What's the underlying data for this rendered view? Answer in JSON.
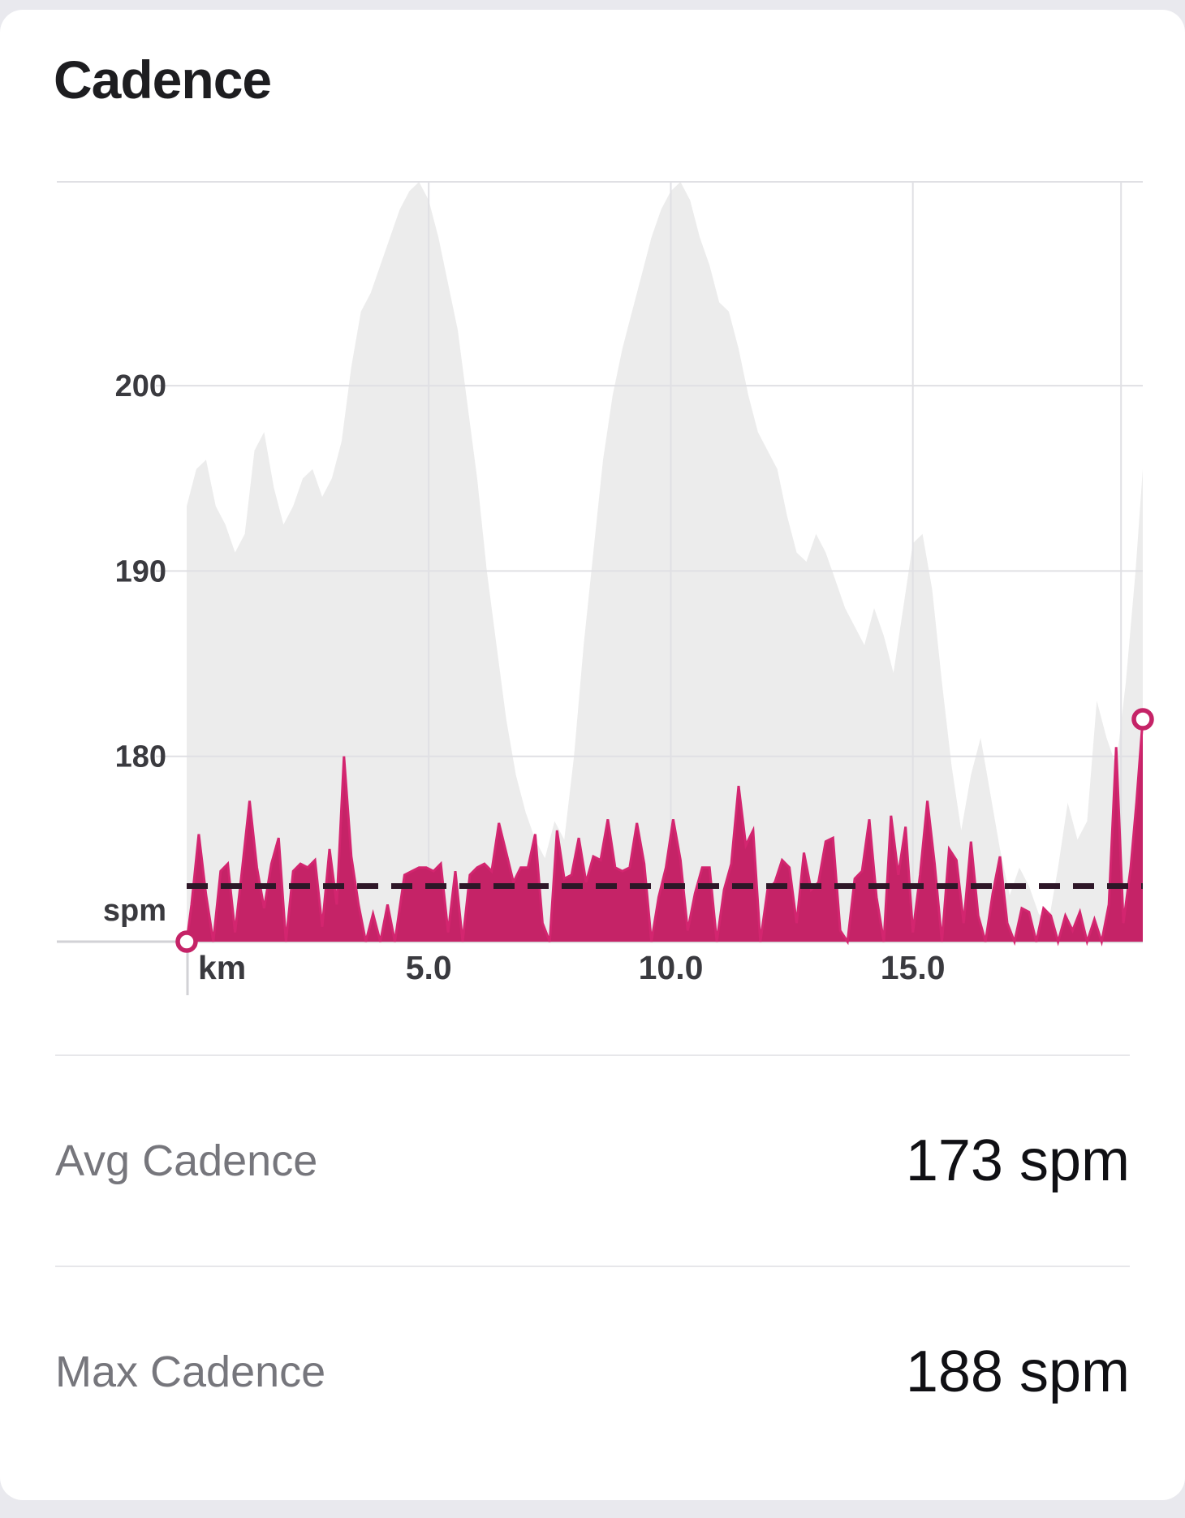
{
  "card": {
    "title": "Cadence"
  },
  "stats": [
    {
      "label": "Avg Cadence",
      "value": "173 spm"
    },
    {
      "label": "Max Cadence",
      "value": "188 spm"
    }
  ],
  "chart_data": {
    "type": "area",
    "title": "Cadence",
    "x_unit_label": "km",
    "y_unit_label": "spm",
    "xlim": [
      0,
      19.75
    ],
    "ylim": [
      170,
      211
    ],
    "x_ticks": [
      5,
      10,
      15
    ],
    "x_tick_labels": [
      "5.0",
      "10.0",
      "15.0"
    ],
    "y_ticks": [
      180,
      190,
      200
    ],
    "y_tick_labels": [
      "180",
      "190",
      "200"
    ],
    "extra_vline_x": 19.3,
    "avg_cadence_line": 173,
    "max_cadence": 188,
    "grid": true,
    "legend": "none",
    "colors": {
      "cadence_fill": "#c52367",
      "cadence_edge": "#d3256f",
      "background_fill": "#ececec",
      "avg_line": "#2e1728",
      "grid_line": "#e0e0e4",
      "axis_line": "#d2d2d6",
      "tick_text": "#3a3a3f",
      "marker_fill": "#ffffff"
    },
    "markers": {
      "start": [
        0,
        170
      ],
      "end": [
        19.75,
        182
      ]
    },
    "series": [
      {
        "name": "background-profile",
        "role": "elevation-silhouette",
        "points": [
          [
            0,
            193.5
          ],
          [
            0.2,
            195.5
          ],
          [
            0.4,
            196
          ],
          [
            0.6,
            193.5
          ],
          [
            0.8,
            192.5
          ],
          [
            1,
            191
          ],
          [
            1.2,
            192
          ],
          [
            1.4,
            196.5
          ],
          [
            1.6,
            197.5
          ],
          [
            1.8,
            194.5
          ],
          [
            2,
            192.5
          ],
          [
            2.2,
            193.5
          ],
          [
            2.4,
            195
          ],
          [
            2.6,
            195.5
          ],
          [
            2.8,
            194
          ],
          [
            3,
            195
          ],
          [
            3.2,
            197
          ],
          [
            3.4,
            201
          ],
          [
            3.6,
            204
          ],
          [
            3.8,
            205
          ],
          [
            4,
            206.5
          ],
          [
            4.2,
            208
          ],
          [
            4.4,
            209.5
          ],
          [
            4.6,
            210.5
          ],
          [
            4.8,
            211
          ],
          [
            5,
            210
          ],
          [
            5.2,
            208
          ],
          [
            5.4,
            205.5
          ],
          [
            5.6,
            203
          ],
          [
            5.8,
            199
          ],
          [
            6,
            195
          ],
          [
            6.2,
            190
          ],
          [
            6.4,
            186
          ],
          [
            6.6,
            182
          ],
          [
            6.8,
            179
          ],
          [
            7,
            177
          ],
          [
            7.2,
            175.5
          ],
          [
            7.4,
            174.5
          ],
          [
            7.6,
            176.5
          ],
          [
            7.8,
            175.5
          ],
          [
            8,
            180
          ],
          [
            8.2,
            186
          ],
          [
            8.4,
            191
          ],
          [
            8.6,
            196
          ],
          [
            8.8,
            199.5
          ],
          [
            9,
            202
          ],
          [
            9.2,
            204
          ],
          [
            9.4,
            206
          ],
          [
            9.6,
            208
          ],
          [
            9.8,
            209.5
          ],
          [
            10,
            210.5
          ],
          [
            10.2,
            211
          ],
          [
            10.4,
            210
          ],
          [
            10.6,
            208
          ],
          [
            10.8,
            206.5
          ],
          [
            11,
            204.5
          ],
          [
            11.2,
            204
          ],
          [
            11.4,
            202
          ],
          [
            11.6,
            199.5
          ],
          [
            11.8,
            197.5
          ],
          [
            12,
            196.5
          ],
          [
            12.2,
            195.5
          ],
          [
            12.4,
            193
          ],
          [
            12.6,
            191
          ],
          [
            12.8,
            190.5
          ],
          [
            13,
            192
          ],
          [
            13.2,
            191
          ],
          [
            13.4,
            189.5
          ],
          [
            13.6,
            188
          ],
          [
            13.8,
            187
          ],
          [
            14,
            186
          ],
          [
            14.2,
            188
          ],
          [
            14.4,
            186.5
          ],
          [
            14.6,
            184.5
          ],
          [
            14.8,
            188
          ],
          [
            15,
            191.5
          ],
          [
            15.2,
            192
          ],
          [
            15.4,
            189
          ],
          [
            15.6,
            184
          ],
          [
            15.8,
            179.5
          ],
          [
            16,
            176
          ],
          [
            16.2,
            179
          ],
          [
            16.4,
            181
          ],
          [
            16.6,
            178
          ],
          [
            16.8,
            175
          ],
          [
            17,
            172.5
          ],
          [
            17.2,
            174
          ],
          [
            17.4,
            173
          ],
          [
            17.6,
            171.5
          ],
          [
            17.8,
            171
          ],
          [
            18,
            174
          ],
          [
            18.2,
            177.5
          ],
          [
            18.4,
            175.5
          ],
          [
            18.6,
            176.5
          ],
          [
            18.8,
            183
          ],
          [
            19,
            181
          ],
          [
            19.2,
            179.5
          ],
          [
            19.4,
            184
          ],
          [
            19.6,
            190
          ],
          [
            19.75,
            195.5
          ]
        ]
      },
      {
        "name": "cadence",
        "role": "cadence-spm",
        "points": [
          [
            0,
            170
          ],
          [
            0.1,
            172
          ],
          [
            0.25,
            175.8
          ],
          [
            0.4,
            172.5
          ],
          [
            0.55,
            170
          ],
          [
            0.7,
            173.8
          ],
          [
            0.85,
            174.2
          ],
          [
            1,
            170.5
          ],
          [
            1.15,
            174
          ],
          [
            1.3,
            177.6
          ],
          [
            1.45,
            174
          ],
          [
            1.6,
            171.8
          ],
          [
            1.75,
            174.2
          ],
          [
            1.9,
            175.6
          ],
          [
            2.05,
            170
          ],
          [
            2.2,
            173.8
          ],
          [
            2.35,
            174.2
          ],
          [
            2.5,
            174
          ],
          [
            2.65,
            174.4
          ],
          [
            2.8,
            170.8
          ],
          [
            2.95,
            175
          ],
          [
            3.1,
            172
          ],
          [
            3.25,
            180
          ],
          [
            3.4,
            174.6
          ],
          [
            3.55,
            172
          ],
          [
            3.7,
            170
          ],
          [
            3.85,
            171.5
          ],
          [
            4,
            170
          ],
          [
            4.15,
            172
          ],
          [
            4.3,
            170
          ],
          [
            4.5,
            173.6
          ],
          [
            4.65,
            173.8
          ],
          [
            4.8,
            174
          ],
          [
            4.95,
            174
          ],
          [
            5.1,
            173.8
          ],
          [
            5.25,
            174.2
          ],
          [
            5.4,
            170.5
          ],
          [
            5.55,
            173.8
          ],
          [
            5.7,
            170
          ],
          [
            5.85,
            173.6
          ],
          [
            6,
            174
          ],
          [
            6.15,
            174.2
          ],
          [
            6.3,
            173.8
          ],
          [
            6.45,
            176.4
          ],
          [
            6.6,
            174.8
          ],
          [
            6.75,
            173.2
          ],
          [
            6.9,
            174
          ],
          [
            7.05,
            174
          ],
          [
            7.2,
            175.8
          ],
          [
            7.35,
            171
          ],
          [
            7.5,
            170
          ],
          [
            7.65,
            176
          ],
          [
            7.8,
            173.4
          ],
          [
            7.95,
            173.6
          ],
          [
            8.1,
            175.6
          ],
          [
            8.25,
            173.2
          ],
          [
            8.4,
            174.6
          ],
          [
            8.55,
            174.4
          ],
          [
            8.7,
            176.6
          ],
          [
            8.85,
            174
          ],
          [
            9,
            173.8
          ],
          [
            9.15,
            174
          ],
          [
            9.3,
            176.4
          ],
          [
            9.45,
            174.2
          ],
          [
            9.6,
            170
          ],
          [
            9.75,
            172.4
          ],
          [
            9.9,
            174
          ],
          [
            10.05,
            176.6
          ],
          [
            10.2,
            174.4
          ],
          [
            10.35,
            170.6
          ],
          [
            10.5,
            172.6
          ],
          [
            10.65,
            174
          ],
          [
            10.8,
            174
          ],
          [
            10.95,
            170
          ],
          [
            11.1,
            172.8
          ],
          [
            11.25,
            174.2
          ],
          [
            11.4,
            178.4
          ],
          [
            11.55,
            175.2
          ],
          [
            11.7,
            176
          ],
          [
            11.85,
            170
          ],
          [
            12,
            172.8
          ],
          [
            12.15,
            173.2
          ],
          [
            12.3,
            174.4
          ],
          [
            12.45,
            174
          ],
          [
            12.6,
            171
          ],
          [
            12.75,
            174.8
          ],
          [
            12.9,
            172.8
          ],
          [
            13.05,
            173.2
          ],
          [
            13.2,
            175.4
          ],
          [
            13.35,
            175.6
          ],
          [
            13.5,
            170.6
          ],
          [
            13.65,
            170
          ],
          [
            13.8,
            173.4
          ],
          [
            13.95,
            173.8
          ],
          [
            14.1,
            176.6
          ],
          [
            14.25,
            172.4
          ],
          [
            14.4,
            170
          ],
          [
            14.55,
            176.8
          ],
          [
            14.7,
            173.6
          ],
          [
            14.85,
            176.2
          ],
          [
            15,
            170.5
          ],
          [
            15.15,
            173.6
          ],
          [
            15.3,
            177.6
          ],
          [
            15.45,
            174.2
          ],
          [
            15.6,
            170
          ],
          [
            15.75,
            175
          ],
          [
            15.9,
            174.4
          ],
          [
            16.05,
            171
          ],
          [
            16.2,
            175.4
          ],
          [
            16.35,
            171.4
          ],
          [
            16.5,
            170
          ],
          [
            16.65,
            172.6
          ],
          [
            16.8,
            174.6
          ],
          [
            16.95,
            171
          ],
          [
            17.1,
            170
          ],
          [
            17.25,
            171.8
          ],
          [
            17.4,
            171.6
          ],
          [
            17.55,
            170
          ],
          [
            17.7,
            171.8
          ],
          [
            17.85,
            171.4
          ],
          [
            18,
            170
          ],
          [
            18.15,
            171.4
          ],
          [
            18.3,
            170.6
          ],
          [
            18.45,
            171.6
          ],
          [
            18.6,
            170
          ],
          [
            18.75,
            171.2
          ],
          [
            18.9,
            170
          ],
          [
            19.05,
            172
          ],
          [
            19.2,
            180.5
          ],
          [
            19.35,
            171
          ],
          [
            19.5,
            174
          ],
          [
            19.62,
            177.5
          ],
          [
            19.75,
            182
          ]
        ]
      }
    ]
  }
}
